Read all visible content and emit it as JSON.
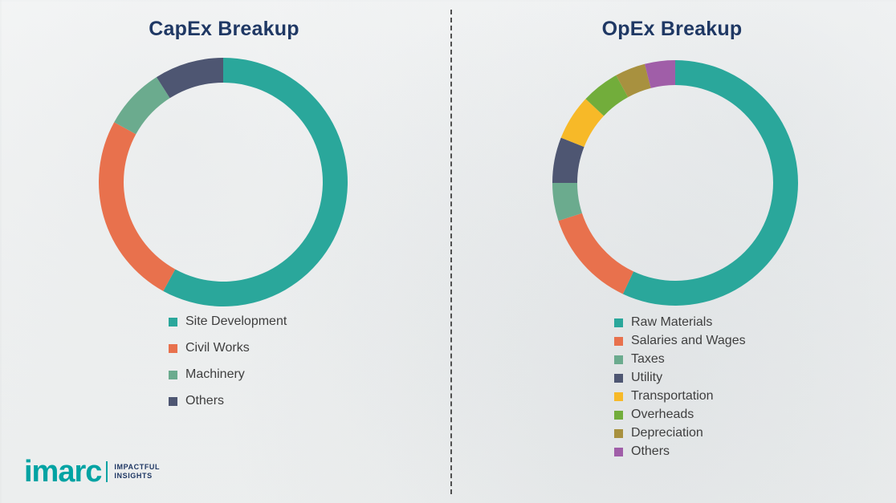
{
  "accent_color": "#1F3864",
  "divider": {
    "style": "dashed-vertical"
  },
  "logo": {
    "name": "imarc",
    "tagline_line1": "IMPACTFUL",
    "tagline_line2": "INSIGHTS",
    "brand_color": "#00A3A3",
    "tagline_color": "#1F3864"
  },
  "chart_data": [
    {
      "type": "pie",
      "subtype": "donut",
      "title": "CapEx Breakup",
      "legend_position": "below-chart-left",
      "units": "percent (estimated from arc angles, no data labels shown)",
      "segments": [
        {
          "label": "Site Development",
          "value": 58,
          "color": "#2AA79B"
        },
        {
          "label": "Civil Works",
          "value": 25,
          "color": "#E8714D"
        },
        {
          "label": "Machinery",
          "value": 8,
          "color": "#6BAB8E"
        },
        {
          "label": "Others",
          "value": 9,
          "color": "#4E5672"
        }
      ]
    },
    {
      "type": "pie",
      "subtype": "donut",
      "title": "OpEx Breakup",
      "legend_position": "below-chart-left",
      "units": "percent (estimated from arc angles, no data labels shown)",
      "segments": [
        {
          "label": "Raw Materials",
          "value": 57,
          "color": "#2AA79B"
        },
        {
          "label": "Salaries and Wages",
          "value": 13,
          "color": "#E8714D"
        },
        {
          "label": "Taxes",
          "value": 5,
          "color": "#6BAB8E"
        },
        {
          "label": "Utility",
          "value": 6,
          "color": "#4E5672"
        },
        {
          "label": "Transportation",
          "value": 6,
          "color": "#F7B928"
        },
        {
          "label": "Overheads",
          "value": 5,
          "color": "#72AD3B"
        },
        {
          "label": "Depreciation",
          "value": 4,
          "color": "#A8913F"
        },
        {
          "label": "Others",
          "value": 4,
          "color": "#A05EA8"
        }
      ]
    }
  ]
}
